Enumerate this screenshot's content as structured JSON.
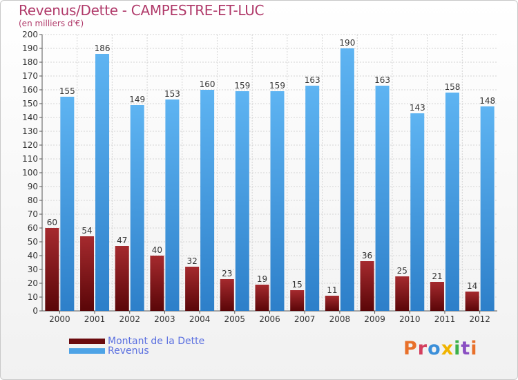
{
  "title": "Revenus/Dette - CAMPESTRE-ET-LUC",
  "subtitle": "(en milliers d'€)",
  "logo": {
    "text": "Proxiti",
    "letter_colors": [
      "#e8702a",
      "#d43f5e",
      "#3b8fd9",
      "#f0b400",
      "#3bb04a",
      "#8a4fc2",
      "#e8702a"
    ]
  },
  "chart_data": {
    "type": "bar",
    "categories": [
      "2000",
      "2001",
      "2002",
      "2003",
      "2004",
      "2005",
      "2006",
      "2007",
      "2008",
      "2009",
      "2010",
      "2011",
      "2012"
    ],
    "series": [
      {
        "name": "Montant de la Dette",
        "color": "#7a0e12",
        "values": [
          60,
          54,
          47,
          40,
          32,
          23,
          19,
          15,
          11,
          36,
          25,
          21,
          14
        ]
      },
      {
        "name": "Revenus",
        "color": "#4da3e6",
        "values": [
          155,
          186,
          149,
          153,
          160,
          159,
          159,
          163,
          190,
          163,
          143,
          158,
          148
        ]
      }
    ],
    "yticks": [
      "0",
      "10",
      "20",
      "30",
      "40",
      "50",
      "60",
      "70",
      "80",
      "90",
      "100",
      "110",
      "120",
      "130",
      "140",
      "150",
      "160",
      "170",
      "180",
      "190",
      "200"
    ],
    "ylim": [
      0,
      200
    ],
    "grid": true,
    "legend_position": "bottom-left"
  }
}
